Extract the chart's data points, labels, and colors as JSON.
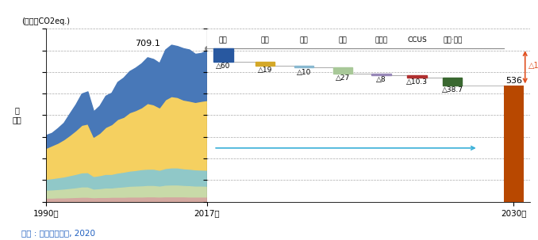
{
  "ylabel_unit": "(백만톤CO2eq.)",
  "source": "출처 : 대한민국정부, 2020",
  "value_2017": 709.1,
  "value_2030": 536,
  "ylim": [
    0,
    800
  ],
  "yticks": [
    0,
    100,
    200,
    300,
    400,
    500,
    600,
    700,
    800
  ],
  "stacked_colors": [
    "#d4a8a0",
    "#c8daa8",
    "#90c8c8",
    "#f5d060",
    "#4878b8"
  ],
  "bar_2030_color": "#b84800",
  "reduction_arrow_color": "#e05020",
  "horizontal_arrow_color": "#3ab0d8",
  "sectors": [
    "전력",
    "산업",
    "건물",
    "수송",
    "폐기물",
    "CCUS",
    "국외·산림"
  ],
  "sector_reductions": [
    60,
    19,
    10,
    27,
    8,
    10.3,
    38.7
  ],
  "sector_colors": [
    "#2858a0",
    "#d4a828",
    "#88b8d0",
    "#a8c898",
    "#9888b8",
    "#b03030",
    "#3a6830"
  ],
  "box_tops": [
    709.1,
    649.1,
    630.1,
    620.1,
    593.1,
    585.1,
    574.8
  ],
  "stacked_data": {
    "years": [
      1990,
      1991,
      1992,
      1993,
      1994,
      1995,
      1996,
      1997,
      1998,
      1999,
      2000,
      2001,
      2002,
      2003,
      2004,
      2005,
      2006,
      2007,
      2008,
      2009,
      2010,
      2011,
      2012,
      2013,
      2014,
      2015,
      2016,
      2017
    ],
    "s1_bot": [
      0,
      0,
      0,
      0,
      0,
      0,
      0,
      0,
      0,
      0,
      0,
      0,
      0,
      0,
      0,
      0,
      0,
      0,
      0,
      0,
      0,
      0,
      0,
      0,
      0,
      0,
      0,
      0
    ],
    "s1_top": [
      18,
      18,
      19,
      19,
      20,
      21,
      22,
      22,
      20,
      21,
      21,
      22,
      22,
      22,
      23,
      23,
      23,
      24,
      24,
      23,
      24,
      24,
      24,
      24,
      23,
      23,
      23,
      23
    ],
    "s2_top": [
      55,
      56,
      58,
      60,
      63,
      66,
      70,
      70,
      60,
      62,
      65,
      65,
      68,
      70,
      73,
      74,
      75,
      77,
      77,
      74,
      78,
      79,
      79,
      77,
      76,
      74,
      74,
      73
    ],
    "s3_top": [
      105,
      108,
      112,
      116,
      122,
      128,
      135,
      136,
      118,
      122,
      128,
      128,
      134,
      138,
      143,
      146,
      150,
      152,
      152,
      147,
      155,
      158,
      158,
      154,
      152,
      149,
      148,
      147
    ],
    "s4_top": [
      248,
      260,
      272,
      288,
      308,
      330,
      355,
      361,
      300,
      318,
      345,
      358,
      382,
      392,
      413,
      423,
      436,
      456,
      450,
      436,
      473,
      488,
      484,
      472,
      467,
      461,
      466,
      470
    ],
    "s5_top": [
      308,
      318,
      340,
      365,
      408,
      450,
      500,
      510,
      418,
      444,
      490,
      504,
      554,
      574,
      604,
      620,
      640,
      668,
      660,
      642,
      704,
      726,
      720,
      710,
      704,
      684,
      688,
      700
    ]
  }
}
